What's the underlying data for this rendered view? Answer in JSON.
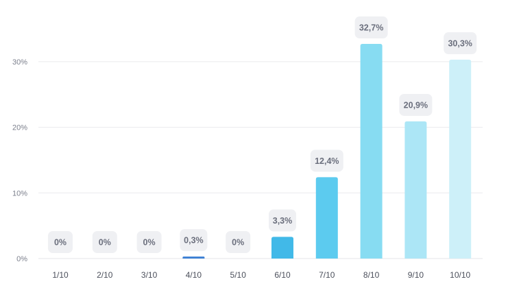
{
  "chart_data": {
    "type": "bar",
    "categories": [
      "1/10",
      "2/10",
      "3/10",
      "4/10",
      "5/10",
      "6/10",
      "7/10",
      "8/10",
      "9/10",
      "10/10"
    ],
    "values": [
      0,
      0,
      0,
      0.3,
      0,
      3.3,
      12.4,
      32.7,
      20.9,
      30.3
    ],
    "data_labels": [
      "0%",
      "0%",
      "0%",
      "0,3%",
      "0%",
      "3,3%",
      "12,4%",
      "32,7%",
      "20,9%",
      "30,3%"
    ],
    "bar_colors": [
      "#3b7fd4",
      "#3b7fd4",
      "#3b7fd4",
      "#3b7fd4",
      "#3aa9e4",
      "#41b9e8",
      "#5ccbef",
      "#87dcf2",
      "#ace6f6",
      "#cdf0f9"
    ],
    "y_ticks": [
      0,
      10,
      20,
      30
    ],
    "y_tick_labels": [
      "0%",
      "10%",
      "20%",
      "30%"
    ],
    "ylim": [
      0,
      33
    ],
    "grid": true,
    "legend": false,
    "title": "",
    "xlabel": "",
    "ylabel": ""
  }
}
